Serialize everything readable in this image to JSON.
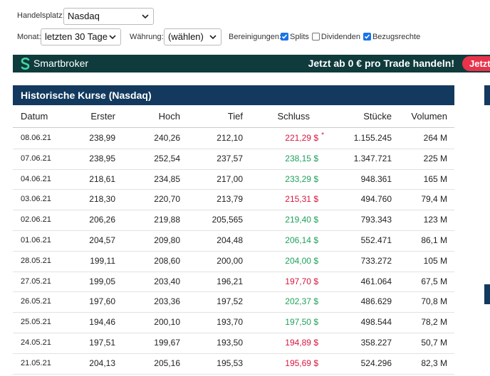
{
  "filters": {
    "handelsplatz": {
      "label": "Handelsplatz:",
      "value": "Nasdaq"
    },
    "monat": {
      "label": "Monat:",
      "value": "letzten 30 Tage"
    },
    "waehrung": {
      "label": "Währung:",
      "value": "(wählen)"
    },
    "bereinigungen": {
      "label": "Bereinigungen:",
      "options": [
        {
          "label": "Splits",
          "checked": true
        },
        {
          "label": "Dividenden",
          "checked": false
        },
        {
          "label": "Bezugsrechte",
          "checked": true
        }
      ]
    }
  },
  "banner": {
    "brand": "Smartbroker",
    "slogan": "Jetzt ab 0 € pro Trade handeln!",
    "button": "Jetzt"
  },
  "table": {
    "title": "Historische Kurse (Nasdaq)",
    "columns": [
      "Datum",
      "Erster",
      "Hoch",
      "Tief",
      "Schluss",
      "Stücke",
      "Volumen"
    ],
    "rows": [
      {
        "datum": "08.06.21",
        "erster": "238,99",
        "hoch": "240,26",
        "tief": "212,10",
        "schluss": "221,29 $",
        "trend": "down",
        "note": "*",
        "stuecke": "1.155.245",
        "volumen": "264 M"
      },
      {
        "datum": "07.06.21",
        "erster": "238,95",
        "hoch": "252,54",
        "tief": "237,57",
        "schluss": "238,15 $",
        "trend": "up",
        "stuecke": "1.347.721",
        "volumen": "225 M"
      },
      {
        "datum": "04.06.21",
        "erster": "218,61",
        "hoch": "234,85",
        "tief": "217,00",
        "schluss": "233,29 $",
        "trend": "up",
        "stuecke": "948.361",
        "volumen": "165 M"
      },
      {
        "datum": "03.06.21",
        "erster": "218,30",
        "hoch": "220,70",
        "tief": "213,79",
        "schluss": "215,31 $",
        "trend": "down",
        "stuecke": "494.760",
        "volumen": "79,4 M"
      },
      {
        "datum": "02.06.21",
        "erster": "206,26",
        "hoch": "219,88",
        "tief": "205,565",
        "schluss": "219,40 $",
        "trend": "up",
        "stuecke": "793.343",
        "volumen": "123 M"
      },
      {
        "datum": "01.06.21",
        "erster": "204,57",
        "hoch": "209,80",
        "tief": "204,48",
        "schluss": "206,14 $",
        "trend": "up",
        "stuecke": "552.471",
        "volumen": "86,1 M"
      },
      {
        "datum": "28.05.21",
        "erster": "199,11",
        "hoch": "208,60",
        "tief": "200,00",
        "schluss": "204,00 $",
        "trend": "up",
        "stuecke": "733.272",
        "volumen": "105 M"
      },
      {
        "datum": "27.05.21",
        "erster": "199,05",
        "hoch": "203,40",
        "tief": "196,21",
        "schluss": "197,70 $",
        "trend": "down",
        "stuecke": "461.064",
        "volumen": "67,5 M"
      },
      {
        "datum": "26.05.21",
        "erster": "197,60",
        "hoch": "203,36",
        "tief": "197,52",
        "schluss": "202,37 $",
        "trend": "up",
        "stuecke": "486.629",
        "volumen": "70,8 M"
      },
      {
        "datum": "25.05.21",
        "erster": "194,46",
        "hoch": "200,10",
        "tief": "193,70",
        "schluss": "197,50 $",
        "trend": "up",
        "stuecke": "498.544",
        "volumen": "78,2 M"
      },
      {
        "datum": "24.05.21",
        "erster": "197,51",
        "hoch": "199,67",
        "tief": "193,50",
        "schluss": "194,89 $",
        "trend": "down",
        "stuecke": "358.227",
        "volumen": "50,7 M"
      },
      {
        "datum": "21.05.21",
        "erster": "204,13",
        "hoch": "205,16",
        "tief": "195,53",
        "schluss": "195,69 $",
        "trend": "down",
        "stuecke": "524.296",
        "volumen": "82,3 M"
      }
    ]
  }
}
